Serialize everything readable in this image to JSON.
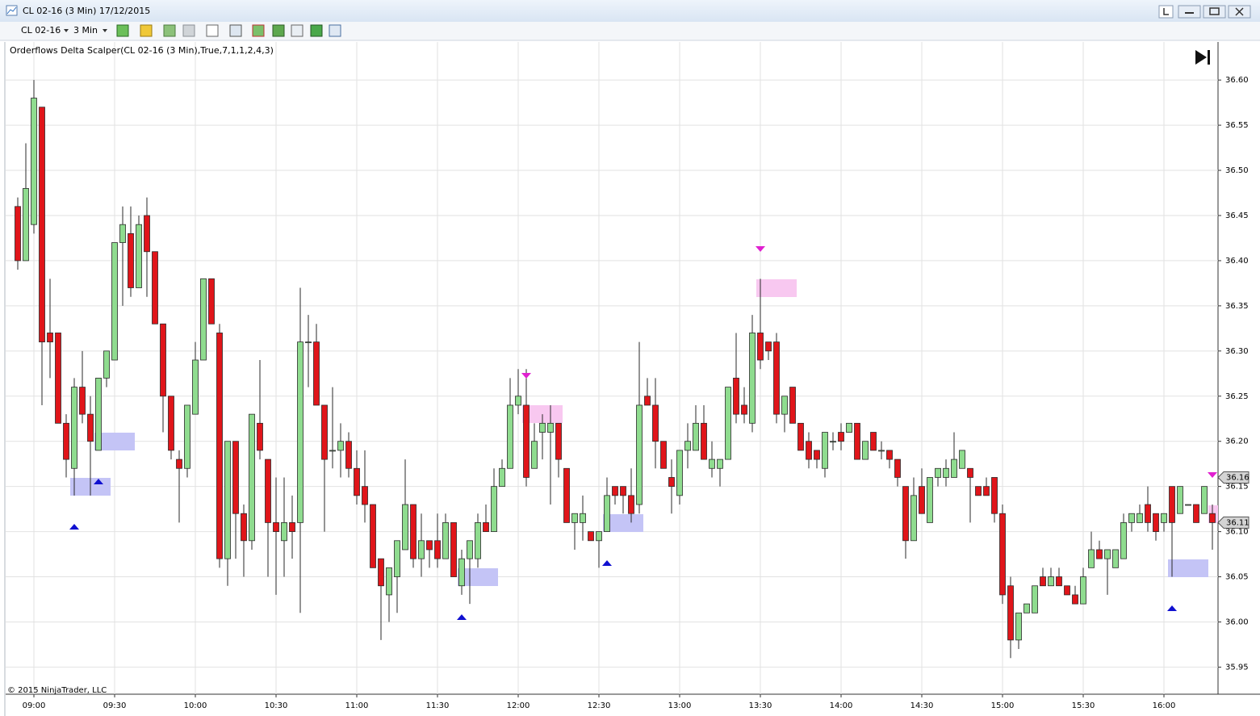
{
  "window": {
    "title": "CL 02-16 (3 Min)  17/12/2015",
    "instrument": "CL 02-16",
    "interval": "3 Min"
  },
  "copyright": "© 2015 NinjaTrader, LLC",
  "chart_data": {
    "type": "candlestick",
    "subtitle": "Orderflows Delta Scalper(CL 02-16 (3 Min),True,7,1,1,2,4,3)",
    "categories": [
      null,
      null,
      "09:00",
      null,
      null,
      null,
      null,
      null,
      null,
      null,
      null,
      null,
      "09:30",
      null,
      null,
      null,
      null,
      null,
      null,
      null,
      null,
      null,
      "10:00",
      null,
      null,
      null,
      null,
      null,
      null,
      null,
      null,
      null,
      "10:30",
      null,
      null,
      null,
      null,
      null,
      null,
      null,
      null,
      null,
      "11:00",
      null,
      null,
      null,
      null,
      null,
      null,
      null,
      null,
      null,
      "11:30",
      null,
      null,
      null,
      null,
      null,
      null,
      null,
      null,
      null,
      "12:00",
      null,
      null,
      null,
      null,
      null,
      null,
      null,
      null,
      null,
      "12:30",
      null,
      null,
      null,
      null,
      null,
      null,
      null,
      null,
      null,
      "13:00",
      null,
      null,
      null,
      null,
      null,
      null,
      null,
      null,
      null,
      "13:30",
      null,
      null,
      null,
      null,
      null,
      null,
      null,
      null,
      null,
      "14:00",
      null,
      null,
      null,
      null,
      null,
      null,
      null,
      null,
      null,
      "14:30",
      null,
      null,
      null,
      null,
      null,
      null,
      null,
      null,
      null,
      "15:00",
      null,
      null,
      null,
      null,
      null,
      null,
      null,
      null,
      null,
      "15:30",
      null,
      null,
      null,
      null,
      null,
      null,
      null,
      null,
      null,
      "16:00",
      null,
      null,
      null,
      null,
      null,
      null
    ],
    "open": [
      36.46,
      36.4,
      36.44,
      36.57,
      36.32,
      36.32,
      36.22,
      36.17,
      36.26,
      36.23,
      36.19,
      36.27,
      36.29,
      36.42,
      36.43,
      36.37,
      36.45,
      36.41,
      36.33,
      36.25,
      36.18,
      36.17,
      36.23,
      36.29,
      36.38,
      36.32,
      36.07,
      36.2,
      36.12,
      36.09,
      36.22,
      36.18,
      36.11,
      36.09,
      36.11,
      36.11,
      36.31,
      36.31,
      36.24,
      36.19,
      36.19,
      36.2,
      36.17,
      36.15,
      36.13,
      36.07,
      36.03,
      36.05,
      36.08,
      36.13,
      36.07,
      36.09,
      36.09,
      36.07,
      36.11,
      36.04,
      36.07,
      36.07,
      36.11,
      36.1,
      36.15,
      36.17,
      36.24,
      36.24,
      36.17,
      36.21,
      36.21,
      36.22,
      36.17,
      36.11,
      36.11,
      36.1,
      36.09,
      36.1,
      36.15,
      36.15,
      36.14,
      36.13,
      36.25,
      36.24,
      36.2,
      36.16,
      36.14,
      36.19,
      36.19,
      36.22,
      36.17,
      36.17,
      36.18,
      36.27,
      36.24,
      36.22,
      36.32,
      36.31,
      36.31,
      36.23,
      36.26,
      36.22,
      36.2,
      36.19,
      36.17,
      36.2,
      36.21,
      36.21,
      36.22,
      36.18,
      36.21,
      36.19,
      36.19,
      36.18,
      36.15,
      36.09,
      36.15,
      36.11,
      36.16,
      36.16,
      36.16,
      36.17,
      36.17,
      36.15,
      36.15,
      36.16,
      36.12,
      36.04,
      35.98,
      36.01,
      36.01,
      36.05,
      36.04,
      36.05,
      36.04,
      36.03,
      36.02,
      36.06,
      36.08,
      36.07,
      36.06,
      36.07,
      36.11,
      36.11,
      36.13,
      36.12,
      36.11,
      36.15,
      36.12,
      36.13,
      36.13,
      36.12,
      36.12
    ],
    "high": [
      36.47,
      36.53,
      36.6,
      36.57,
      36.38,
      36.32,
      36.23,
      36.27,
      36.3,
      36.25,
      36.27,
      36.3,
      36.42,
      36.46,
      36.46,
      36.45,
      36.47,
      36.41,
      36.33,
      36.25,
      36.19,
      36.24,
      36.31,
      36.38,
      36.38,
      36.33,
      36.2,
      36.2,
      36.13,
      36.23,
      36.29,
      36.18,
      36.16,
      36.16,
      36.14,
      36.37,
      36.34,
      36.33,
      36.24,
      36.26,
      36.22,
      36.21,
      36.19,
      36.19,
      36.13,
      36.07,
      36.06,
      36.09,
      36.18,
      36.13,
      36.12,
      36.09,
      36.12,
      36.12,
      36.11,
      36.08,
      36.09,
      36.12,
      36.13,
      36.17,
      36.18,
      36.27,
      36.28,
      36.28,
      36.22,
      36.23,
      36.24,
      36.22,
      36.17,
      36.12,
      36.14,
      36.1,
      36.1,
      36.16,
      36.15,
      36.15,
      36.17,
      36.31,
      36.27,
      36.27,
      36.2,
      36.18,
      36.19,
      36.22,
      36.24,
      36.24,
      36.2,
      36.18,
      36.26,
      36.32,
      36.26,
      36.34,
      36.38,
      36.31,
      36.32,
      36.25,
      36.26,
      36.22,
      36.21,
      36.19,
      36.21,
      36.21,
      36.22,
      36.22,
      36.22,
      36.2,
      36.21,
      36.2,
      36.19,
      36.18,
      36.15,
      36.16,
      36.17,
      36.16,
      36.17,
      36.18,
      36.21,
      36.19,
      36.17,
      36.15,
      36.16,
      36.16,
      36.13,
      36.05,
      36.01,
      36.02,
      36.04,
      36.06,
      36.06,
      36.06,
      36.04,
      36.04,
      36.06,
      36.1,
      36.09,
      36.08,
      36.08,
      36.12,
      36.12,
      36.13,
      36.15,
      36.12,
      36.12,
      36.15,
      36.15,
      36.13,
      36.13,
      36.15,
      36.13
    ],
    "low": [
      36.39,
      36.4,
      36.43,
      36.24,
      36.27,
      36.22,
      36.16,
      36.14,
      36.22,
      36.14,
      36.19,
      36.26,
      36.29,
      36.35,
      36.36,
      36.37,
      36.36,
      36.33,
      36.21,
      36.18,
      36.11,
      36.16,
      36.23,
      36.29,
      36.33,
      36.06,
      36.04,
      36.07,
      36.05,
      36.08,
      36.18,
      36.05,
      36.03,
      36.05,
      36.07,
      36.01,
      36.26,
      36.24,
      36.1,
      36.17,
      36.16,
      36.16,
      36.13,
      36.11,
      36.06,
      35.98,
      36.0,
      36.01,
      36.08,
      36.06,
      36.05,
      36.06,
      36.06,
      36.07,
      36.05,
      36.03,
      36.02,
      36.06,
      36.1,
      36.1,
      36.15,
      36.17,
      36.23,
      36.15,
      36.17,
      36.18,
      36.13,
      36.16,
      36.11,
      36.08,
      36.09,
      36.09,
      36.06,
      36.1,
      36.13,
      36.12,
      36.11,
      36.12,
      36.24,
      36.17,
      36.17,
      36.12,
      36.13,
      36.17,
      36.19,
      36.18,
      36.16,
      36.15,
      36.18,
      36.22,
      36.22,
      36.21,
      36.28,
      36.29,
      36.22,
      36.21,
      36.22,
      36.19,
      36.17,
      36.17,
      36.16,
      36.19,
      36.19,
      36.21,
      36.18,
      36.18,
      36.19,
      36.18,
      36.17,
      36.15,
      36.07,
      36.09,
      36.12,
      36.11,
      36.15,
      36.15,
      36.16,
      36.17,
      36.11,
      36.14,
      36.14,
      36.11,
      36.02,
      35.96,
      35.97,
      36.01,
      36.01,
      36.04,
      36.04,
      36.04,
      36.03,
      36.02,
      36.02,
      36.06,
      36.07,
      36.03,
      36.06,
      36.07,
      36.1,
      36.11,
      36.1,
      36.09,
      36.1,
      36.05,
      36.12,
      36.13,
      36.11,
      36.12,
      36.08
    ],
    "close": [
      36.4,
      36.48,
      36.58,
      36.31,
      36.31,
      36.22,
      36.18,
      36.26,
      36.23,
      36.2,
      36.27,
      36.3,
      36.42,
      36.44,
      36.37,
      36.44,
      36.41,
      36.33,
      36.25,
      36.19,
      36.17,
      36.24,
      36.29,
      36.38,
      36.33,
      36.07,
      36.2,
      36.12,
      36.09,
      36.23,
      36.19,
      36.11,
      36.1,
      36.11,
      36.1,
      36.31,
      36.31,
      36.24,
      36.18,
      36.19,
      36.2,
      36.17,
      36.14,
      36.13,
      36.06,
      36.04,
      36.06,
      36.09,
      36.13,
      36.07,
      36.09,
      36.08,
      36.07,
      36.11,
      36.05,
      36.07,
      36.09,
      36.11,
      36.1,
      36.15,
      36.17,
      36.24,
      36.25,
      36.16,
      36.2,
      36.22,
      36.22,
      36.18,
      36.11,
      36.12,
      36.12,
      36.09,
      36.1,
      36.14,
      36.14,
      36.14,
      36.12,
      36.24,
      36.24,
      36.2,
      36.17,
      36.15,
      36.19,
      36.2,
      36.22,
      36.18,
      36.18,
      36.18,
      36.26,
      36.23,
      36.23,
      36.32,
      36.29,
      36.3,
      36.23,
      36.25,
      36.22,
      36.19,
      36.18,
      36.18,
      36.21,
      36.2,
      36.2,
      36.22,
      36.18,
      36.2,
      36.19,
      36.19,
      36.18,
      36.16,
      36.09,
      36.14,
      36.12,
      36.16,
      36.17,
      36.17,
      36.18,
      36.19,
      36.16,
      36.14,
      36.14,
      36.12,
      36.03,
      35.98,
      36.01,
      36.02,
      36.04,
      36.04,
      36.05,
      36.04,
      36.03,
      36.02,
      36.05,
      36.08,
      36.07,
      36.08,
      36.08,
      36.11,
      36.12,
      36.12,
      36.11,
      36.1,
      36.12,
      36.11,
      36.15,
      36.13,
      36.11,
      36.15,
      36.11
    ],
    "up_color": "#8fdc8f",
    "down_color": "#e0151a",
    "outline_color": "#2a2a2a",
    "ylim": [
      35.92,
      36.635
    ],
    "yticks": [
      35.95,
      {
        "value": 36.0,
        "label": "36.00"
      },
      36.05,
      {
        "value": 36.1,
        "label": "36.10"
      },
      36.15,
      {
        "value": 36.2,
        "label": "36.20"
      },
      36.25,
      {
        "value": 36.3,
        "label": "36.30"
      },
      36.35,
      {
        "value": 36.4,
        "label": "36.40"
      },
      36.45,
      {
        "value": 36.5,
        "label": "36.50"
      },
      36.55,
      {
        "value": 36.6,
        "label": "36.60"
      }
    ],
    "price_markers": [
      {
        "value": 36.16,
        "label": "36.16"
      },
      {
        "value": 36.11,
        "label": "36.11"
      }
    ],
    "grid": true
  }
}
